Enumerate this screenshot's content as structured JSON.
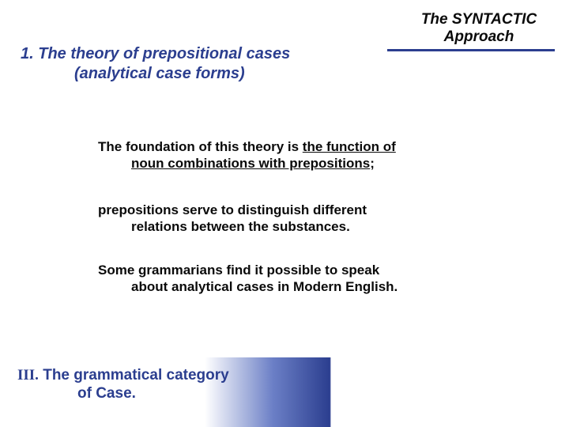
{
  "colors": {
    "accent": "#2b3e8f",
    "text": "#0a0a0a",
    "background": "#ffffff"
  },
  "fonts": {
    "body_family": "Arial",
    "roman_family": "Times New Roman",
    "heading_size_pt": 20,
    "body_size_pt": 17,
    "footer_size_pt": 19,
    "header_label_size_pt": 19
  },
  "header": {
    "label_line1": "The SYNTACTIC",
    "label_line2": "Approach"
  },
  "heading": {
    "number": "1.",
    "line1": "The theory of prepositional cases",
    "line2": "(analytical case forms)"
  },
  "body": {
    "p1_a": "The foundation of this theory is ",
    "p1_u1": "the function of",
    "p1_u2": "noun combinations with prepositions",
    "p1_b": ";",
    "p2_a": "prepositions serve to distinguish different",
    "p2_b": "relations between the substances.",
    "p3_a": "Some grammarians find it possible to speak",
    "p3_b": "about analytical cases in Modern English."
  },
  "footer": {
    "roman": "III.",
    "line1": "The grammatical category",
    "line2": "of Case."
  }
}
